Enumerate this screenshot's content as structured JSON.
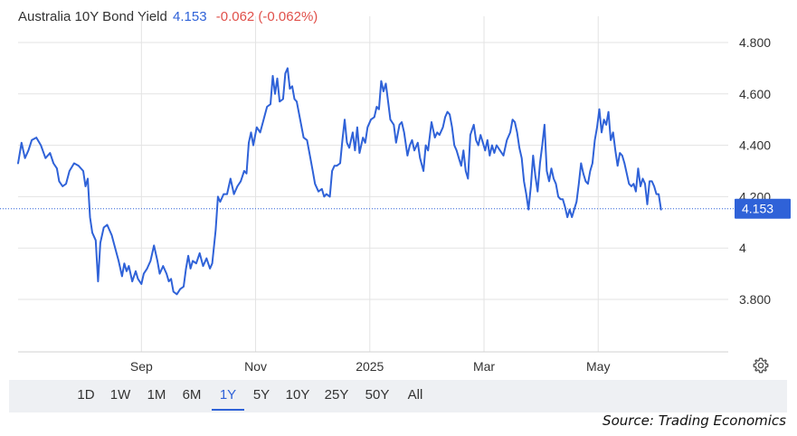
{
  "header": {
    "name": "Australia 10Y Bond Yield",
    "price": "4.153",
    "change": "-0.062 (-0.062%)"
  },
  "colors": {
    "line": "#2f62d8",
    "negative": "#e0504a",
    "grid": "#e3e3e3",
    "range_bar": "#eef0f3"
  },
  "range_buttons": [
    {
      "label": "1D"
    },
    {
      "label": "1W"
    },
    {
      "label": "1M"
    },
    {
      "label": "6M"
    },
    {
      "label": "1Y",
      "active": true
    },
    {
      "label": "5Y"
    },
    {
      "label": "10Y"
    },
    {
      "label": "25Y"
    },
    {
      "label": "50Y"
    },
    {
      "label": "All"
    }
  ],
  "source": "Source: Trading Economics",
  "settings_icon": "gear-icon",
  "chart_data": {
    "type": "line",
    "title": "Australia 10Y Bond Yield",
    "xlabel": "",
    "ylabel": "",
    "ylim": [
      3.6,
      4.88
    ],
    "yticks": [
      {
        "value": 4.8,
        "label": "4.800"
      },
      {
        "value": 4.6,
        "label": "4.600"
      },
      {
        "value": 4.4,
        "label": "4.400"
      },
      {
        "value": 4.2,
        "label": "4.200"
      },
      {
        "value": 4.0,
        "label": "4"
      },
      {
        "value": 3.8,
        "label": "3.800"
      }
    ],
    "xlim": [
      0,
      305
    ],
    "xticks": [
      {
        "value": 54,
        "label": "Sep"
      },
      {
        "value": 104,
        "label": "Nov"
      },
      {
        "value": 154,
        "label": "2025"
      },
      {
        "value": 204,
        "label": "Mar"
      },
      {
        "value": 254,
        "label": "May"
      }
    ],
    "grid": true,
    "last_value": 4.153,
    "last_label": "4.153",
    "series": [
      {
        "values": [
          [
            0,
            4.33
          ],
          [
            1.5,
            4.41
          ],
          [
            3,
            4.35
          ],
          [
            4.5,
            4.38
          ],
          [
            6,
            4.42
          ],
          [
            8,
            4.43
          ],
          [
            10,
            4.4
          ],
          [
            12,
            4.35
          ],
          [
            14,
            4.37
          ],
          [
            15.5,
            4.33
          ],
          [
            17,
            4.31
          ],
          [
            18,
            4.26
          ],
          [
            19.5,
            4.24
          ],
          [
            21,
            4.25
          ],
          [
            22.5,
            4.3
          ],
          [
            24.5,
            4.33
          ],
          [
            26.5,
            4.32
          ],
          [
            28.5,
            4.3
          ],
          [
            29.5,
            4.24
          ],
          [
            30.5,
            4.27
          ],
          [
            31.5,
            4.12
          ],
          [
            32.5,
            4.06
          ],
          [
            34,
            4.03
          ],
          [
            35,
            3.87
          ],
          [
            36,
            4.02
          ],
          [
            37.5,
            4.08
          ],
          [
            39,
            4.09
          ],
          [
            41,
            4.05
          ],
          [
            42.5,
            4.0
          ],
          [
            44,
            3.95
          ],
          [
            45.5,
            3.89
          ],
          [
            46.5,
            3.94
          ],
          [
            47.5,
            3.91
          ],
          [
            48.5,
            3.93
          ],
          [
            50,
            3.87
          ],
          [
            51.5,
            3.91
          ],
          [
            52.5,
            3.88
          ],
          [
            54,
            3.86
          ],
          [
            55,
            3.9
          ],
          [
            56.5,
            3.92
          ],
          [
            58,
            3.95
          ],
          [
            59.5,
            4.01
          ],
          [
            61,
            3.95
          ],
          [
            62,
            3.9
          ],
          [
            63.5,
            3.93
          ],
          [
            65,
            3.9
          ],
          [
            66,
            3.87
          ],
          [
            67,
            3.88
          ],
          [
            68,
            3.83
          ],
          [
            69.5,
            3.82
          ],
          [
            71,
            3.84
          ],
          [
            72.5,
            3.85
          ],
          [
            73.5,
            3.92
          ],
          [
            74.5,
            3.97
          ],
          [
            75.5,
            3.92
          ],
          [
            76.5,
            3.95
          ],
          [
            78,
            3.94
          ],
          [
            79.5,
            3.98
          ],
          [
            81,
            3.93
          ],
          [
            82.5,
            3.96
          ],
          [
            84,
            3.92
          ],
          [
            85,
            3.94
          ],
          [
            86.5,
            4.07
          ],
          [
            87.5,
            4.2
          ],
          [
            88.5,
            4.18
          ],
          [
            90,
            4.21
          ],
          [
            91.5,
            4.21
          ],
          [
            93,
            4.27
          ],
          [
            94.5,
            4.21
          ],
          [
            96,
            4.24
          ],
          [
            97.5,
            4.26
          ],
          [
            99,
            4.3
          ],
          [
            100,
            4.29
          ],
          [
            101,
            4.41
          ],
          [
            102,
            4.45
          ],
          [
            103,
            4.4
          ],
          [
            104.5,
            4.47
          ],
          [
            106,
            4.45
          ],
          [
            107.5,
            4.5
          ],
          [
            109,
            4.55
          ],
          [
            110.5,
            4.56
          ],
          [
            111.5,
            4.67
          ],
          [
            112.5,
            4.6
          ],
          [
            113.5,
            4.66
          ],
          [
            114.5,
            4.57
          ],
          [
            116,
            4.58
          ],
          [
            117,
            4.68
          ],
          [
            118,
            4.7
          ],
          [
            119,
            4.62
          ],
          [
            120,
            4.63
          ],
          [
            121,
            4.58
          ],
          [
            122,
            4.57
          ],
          [
            123.5,
            4.5
          ],
          [
            125,
            4.43
          ],
          [
            126.5,
            4.42
          ],
          [
            128,
            4.35
          ],
          [
            129,
            4.3
          ],
          [
            130,
            4.25
          ],
          [
            131.5,
            4.22
          ],
          [
            133,
            4.23
          ],
          [
            134,
            4.2
          ],
          [
            135,
            4.21
          ],
          [
            136.5,
            4.2
          ],
          [
            137.5,
            4.3
          ],
          [
            138.5,
            4.32
          ],
          [
            139.5,
            4.32
          ],
          [
            141,
            4.33
          ],
          [
            142,
            4.42
          ],
          [
            143,
            4.5
          ],
          [
            144,
            4.41
          ],
          [
            145,
            4.39
          ],
          [
            146.5,
            4.45
          ],
          [
            147.5,
            4.38
          ],
          [
            148.5,
            4.47
          ],
          [
            149.5,
            4.37
          ],
          [
            151,
            4.43
          ],
          [
            152,
            4.41
          ],
          [
            153,
            4.47
          ],
          [
            154.5,
            4.5
          ],
          [
            156,
            4.51
          ],
          [
            157,
            4.55
          ],
          [
            158,
            4.54
          ],
          [
            159,
            4.65
          ],
          [
            160,
            4.61
          ],
          [
            161,
            4.64
          ],
          [
            162,
            4.57
          ],
          [
            163,
            4.5
          ],
          [
            164.5,
            4.48
          ],
          [
            165.5,
            4.41
          ],
          [
            167,
            4.48
          ],
          [
            168,
            4.49
          ],
          [
            169,
            4.45
          ],
          [
            170.5,
            4.36
          ],
          [
            171.5,
            4.4
          ],
          [
            172.5,
            4.42
          ],
          [
            173.5,
            4.38
          ],
          [
            175,
            4.41
          ],
          [
            176,
            4.35
          ],
          [
            177.5,
            4.3
          ],
          [
            178.5,
            4.4
          ],
          [
            179.5,
            4.38
          ],
          [
            181,
            4.49
          ],
          [
            182.5,
            4.43
          ],
          [
            183.5,
            4.45
          ],
          [
            184.5,
            4.44
          ],
          [
            186,
            4.47
          ],
          [
            187,
            4.51
          ],
          [
            188,
            4.53
          ],
          [
            189,
            4.52
          ],
          [
            190,
            4.47
          ],
          [
            191,
            4.4
          ],
          [
            192,
            4.38
          ],
          [
            193,
            4.35
          ],
          [
            194,
            4.32
          ],
          [
            195,
            4.38
          ],
          [
            196,
            4.3
          ],
          [
            197,
            4.27
          ],
          [
            198,
            4.44
          ],
          [
            199.5,
            4.48
          ],
          [
            200.5,
            4.42
          ],
          [
            201.5,
            4.4
          ],
          [
            202.5,
            4.44
          ],
          [
            203.5,
            4.41
          ],
          [
            204.5,
            4.38
          ],
          [
            205.5,
            4.42
          ],
          [
            206.5,
            4.36
          ],
          [
            207.5,
            4.4
          ],
          [
            208.5,
            4.37
          ],
          [
            209.5,
            4.4
          ],
          [
            211,
            4.38
          ],
          [
            212.5,
            4.36
          ],
          [
            214,
            4.42
          ],
          [
            215.5,
            4.45
          ],
          [
            216.5,
            4.5
          ],
          [
            217.5,
            4.49
          ],
          [
            218.5,
            4.45
          ],
          [
            219.5,
            4.39
          ],
          [
            220.5,
            4.35
          ],
          [
            221.5,
            4.26
          ],
          [
            222.5,
            4.21
          ],
          [
            223.5,
            4.15
          ],
          [
            224.5,
            4.24
          ],
          [
            225.5,
            4.36
          ],
          [
            226.5,
            4.28
          ],
          [
            227.5,
            4.22
          ],
          [
            228.5,
            4.33
          ],
          [
            229.5,
            4.4
          ],
          [
            230.5,
            4.48
          ],
          [
            231.5,
            4.3
          ],
          [
            232.5,
            4.26
          ],
          [
            233.5,
            4.31
          ],
          [
            234.5,
            4.27
          ],
          [
            235.5,
            4.25
          ],
          [
            236.5,
            4.2
          ],
          [
            237.5,
            4.19
          ],
          [
            238.5,
            4.19
          ],
          [
            239.5,
            4.16
          ],
          [
            240.5,
            4.12
          ],
          [
            241.5,
            4.15
          ],
          [
            242.5,
            4.12
          ],
          [
            243.5,
            4.15
          ],
          [
            244.5,
            4.18
          ],
          [
            245.5,
            4.25
          ],
          [
            246.5,
            4.33
          ],
          [
            247.5,
            4.29
          ],
          [
            248.5,
            4.26
          ],
          [
            249.5,
            4.25
          ],
          [
            250.5,
            4.3
          ],
          [
            251.5,
            4.33
          ],
          [
            252.5,
            4.42
          ],
          [
            253.5,
            4.47
          ],
          [
            254.5,
            4.54
          ],
          [
            255.5,
            4.45
          ],
          [
            256.5,
            4.5
          ],
          [
            257.5,
            4.48
          ],
          [
            258.5,
            4.53
          ],
          [
            259.5,
            4.42
          ],
          [
            260.5,
            4.45
          ],
          [
            261.5,
            4.38
          ],
          [
            262.5,
            4.32
          ],
          [
            263.5,
            4.37
          ],
          [
            264.5,
            4.36
          ],
          [
            265.5,
            4.33
          ],
          [
            266.5,
            4.29
          ],
          [
            267.5,
            4.25
          ],
          [
            268.5,
            4.24
          ],
          [
            269.5,
            4.25
          ],
          [
            270.5,
            4.22
          ],
          [
            271.5,
            4.31
          ],
          [
            272.5,
            4.24
          ],
          [
            273.5,
            4.27
          ],
          [
            274.5,
            4.25
          ],
          [
            275.5,
            4.17
          ],
          [
            276.5,
            4.26
          ],
          [
            277.5,
            4.26
          ],
          [
            278.5,
            4.24
          ],
          [
            279.5,
            4.21
          ],
          [
            280.5,
            4.21
          ],
          [
            281.5,
            4.15
          ]
        ]
      }
    ]
  }
}
